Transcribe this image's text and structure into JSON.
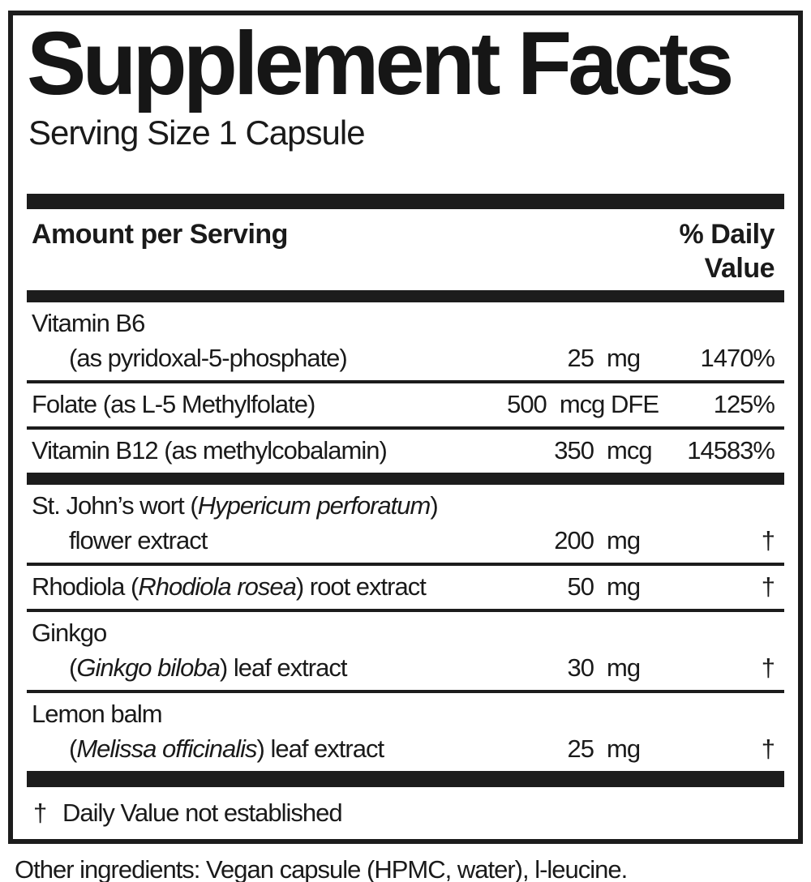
{
  "panel": {
    "title": "Supplement Facts",
    "serving_size": "Serving Size 1 Capsule",
    "columns": {
      "amount_header": "Amount per Serving",
      "dv_header_line1": "% Daily",
      "dv_header_line2": "Value"
    },
    "rows": [
      {
        "name_lines": [
          {
            "indent": false,
            "segments": [
              {
                "text": "Vitamin B6",
                "italic": false
              }
            ]
          },
          {
            "indent": true,
            "segments": [
              {
                "text": "(as pyridoxal-5-phosphate)",
                "italic": false
              }
            ]
          }
        ],
        "amount_value": "25",
        "amount_unit": "mg",
        "daily_value": "1470%",
        "separator_after": "thin"
      },
      {
        "name_lines": [
          {
            "indent": false,
            "segments": [
              {
                "text": "Folate (as L-5 Methylfolate)",
                "italic": false
              }
            ]
          }
        ],
        "amount_value": "500",
        "amount_unit": "mcg DFE",
        "daily_value": "125%",
        "separator_after": "thin"
      },
      {
        "name_lines": [
          {
            "indent": false,
            "segments": [
              {
                "text": "Vitamin B12 (as methylcobalamin)",
                "italic": false
              }
            ]
          }
        ],
        "amount_value": "350",
        "amount_unit": "mcg",
        "daily_value": "14583%",
        "separator_after": "thick"
      },
      {
        "name_lines": [
          {
            "indent": false,
            "segments": [
              {
                "text": "St. John’s wort (",
                "italic": false
              },
              {
                "text": "Hypericum perforatum",
                "italic": true
              },
              {
                "text": ")",
                "italic": false
              }
            ]
          },
          {
            "indent": true,
            "segments": [
              {
                "text": "flower extract",
                "italic": false
              }
            ]
          }
        ],
        "amount_value": "200",
        "amount_unit": "mg",
        "daily_value": "†",
        "separator_after": "thin"
      },
      {
        "name_lines": [
          {
            "indent": false,
            "segments": [
              {
                "text": "Rhodiola (",
                "italic": false
              },
              {
                "text": "Rhodiola rosea",
                "italic": true
              },
              {
                "text": ") root extract",
                "italic": false
              }
            ]
          }
        ],
        "amount_value": "50",
        "amount_unit": "mg",
        "daily_value": "†",
        "separator_after": "thin"
      },
      {
        "name_lines": [
          {
            "indent": false,
            "segments": [
              {
                "text": "Ginkgo",
                "italic": false
              }
            ]
          },
          {
            "indent": true,
            "segments": [
              {
                "text": "(",
                "italic": false
              },
              {
                "text": "Ginkgo biloba",
                "italic": true
              },
              {
                "text": ") leaf extract",
                "italic": false
              }
            ]
          }
        ],
        "amount_value": "30",
        "amount_unit": "mg",
        "daily_value": "†",
        "separator_after": "thin"
      },
      {
        "name_lines": [
          {
            "indent": false,
            "segments": [
              {
                "text": "Lemon balm",
                "italic": false
              }
            ]
          },
          {
            "indent": true,
            "segments": [
              {
                "text": "(",
                "italic": false
              },
              {
                "text": "Melissa officinalis",
                "italic": true
              },
              {
                "text": ") leaf extract",
                "italic": false
              }
            ]
          }
        ],
        "amount_value": "25",
        "amount_unit": "mg",
        "daily_value": "†",
        "separator_after": "thick-heavy"
      }
    ],
    "footnote": {
      "symbol": "†",
      "text": "Daily Value not established"
    }
  },
  "footer": {
    "other_ingredients": "Other ingredients: Vegan capsule (HPMC, water), l-leucine."
  }
}
